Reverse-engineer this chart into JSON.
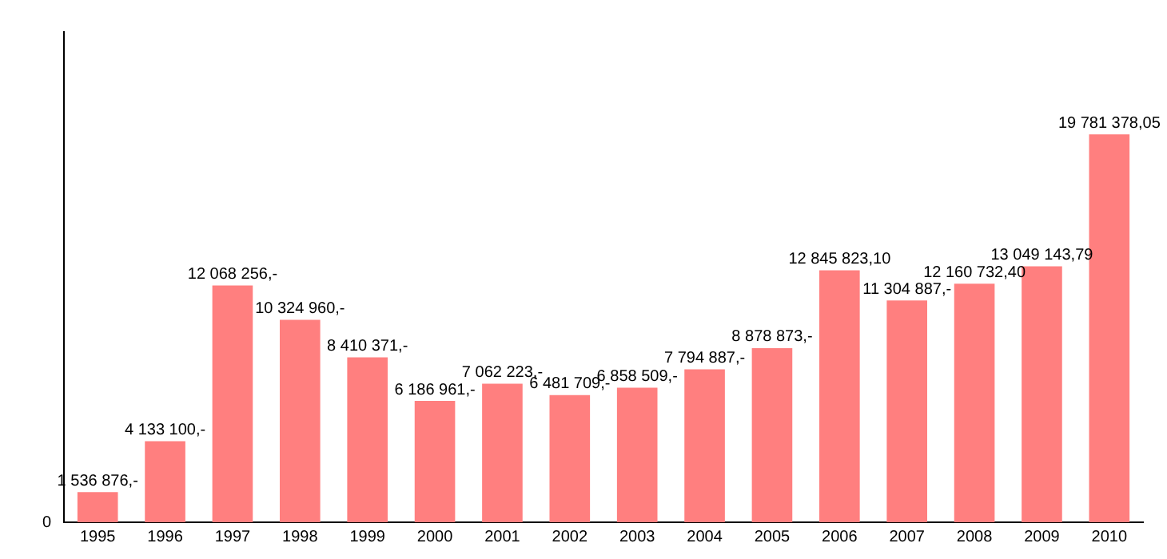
{
  "chart_data": {
    "type": "bar",
    "categories": [
      "1995",
      "1996",
      "1997",
      "1998",
      "1999",
      "2000",
      "2001",
      "2002",
      "2003",
      "2004",
      "2005",
      "2006",
      "2007",
      "2008",
      "2009",
      "2010"
    ],
    "values": [
      1536876,
      4133100,
      12068256,
      10324960,
      8410371,
      6186961,
      7062223,
      6481709,
      6858509,
      7794887,
      8878873,
      12845823.1,
      11304887,
      12160732.4,
      13049143.79,
      19781378.05
    ],
    "value_labels": [
      "1 536 876,-",
      "4 133 100,-",
      "12 068 256,-",
      "10 324 960,-",
      "8 410 371,-",
      "6 186 961,-",
      "7 062 223,-",
      "6 481 709,-",
      "6 858 509,-",
      "7 794 887,-",
      "8 878 873,-",
      "12 845 823,10",
      "11 304 887,-",
      "12 160 732,40",
      "13 049 143,79",
      "19 781 378,05"
    ],
    "color": "#ff7f7f",
    "annotations": [
      "0"
    ],
    "grid": false,
    "legend": false
  }
}
